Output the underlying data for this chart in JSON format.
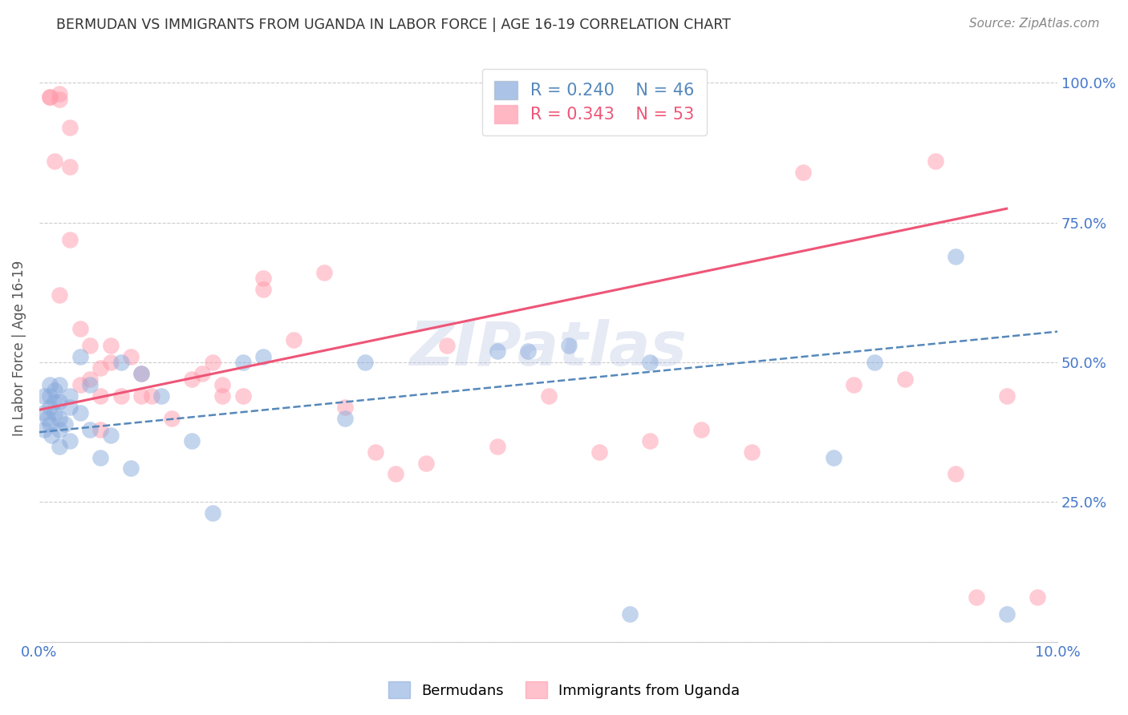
{
  "title": "BERMUDAN VS IMMIGRANTS FROM UGANDA IN LABOR FORCE | AGE 16-19 CORRELATION CHART",
  "source": "Source: ZipAtlas.com",
  "ylabel": "In Labor Force | Age 16-19",
  "xmin": 0.0,
  "xmax": 0.1,
  "ymin": 0.0,
  "ymax": 1.05,
  "yticks": [
    0.0,
    0.25,
    0.5,
    0.75,
    1.0
  ],
  "ytick_labels": [
    "",
    "25.0%",
    "50.0%",
    "75.0%",
    "100.0%"
  ],
  "xticks": [
    0.0,
    0.02,
    0.04,
    0.06,
    0.08,
    0.1
  ],
  "xtick_labels": [
    "0.0%",
    "",
    "",
    "",
    "",
    "10.0%"
  ],
  "legend_r1": "R = 0.240",
  "legend_n1": "N = 46",
  "legend_r2": "R = 0.343",
  "legend_n2": "N = 53",
  "color_blue": "#88AADD",
  "color_pink": "#FF99AA",
  "color_line_blue": "#5588BB",
  "color_line_pink": "#EE5577",
  "color_axis_labels": "#4477CC",
  "color_title": "#333333",
  "watermark": "ZIPatlas",
  "blue_scatter_x": [
    0.0005,
    0.0005,
    0.0005,
    0.0008,
    0.001,
    0.001,
    0.001,
    0.001,
    0.0012,
    0.0015,
    0.0015,
    0.0015,
    0.002,
    0.002,
    0.002,
    0.002,
    0.002,
    0.0025,
    0.003,
    0.003,
    0.003,
    0.004,
    0.004,
    0.005,
    0.005,
    0.006,
    0.007,
    0.008,
    0.009,
    0.01,
    0.012,
    0.015,
    0.017,
    0.02,
    0.022,
    0.03,
    0.032,
    0.045,
    0.048,
    0.052,
    0.058,
    0.06,
    0.078,
    0.082,
    0.09,
    0.095
  ],
  "blue_scatter_y": [
    0.44,
    0.41,
    0.38,
    0.4,
    0.42,
    0.44,
    0.46,
    0.39,
    0.37,
    0.43,
    0.45,
    0.41,
    0.38,
    0.4,
    0.43,
    0.46,
    0.35,
    0.39,
    0.36,
    0.42,
    0.44,
    0.41,
    0.51,
    0.38,
    0.46,
    0.33,
    0.37,
    0.5,
    0.31,
    0.48,
    0.44,
    0.36,
    0.23,
    0.5,
    0.51,
    0.4,
    0.5,
    0.52,
    0.52,
    0.53,
    0.05,
    0.5,
    0.33,
    0.5,
    0.69,
    0.05
  ],
  "pink_scatter_x": [
    0.001,
    0.001,
    0.0015,
    0.002,
    0.002,
    0.002,
    0.003,
    0.003,
    0.003,
    0.004,
    0.004,
    0.005,
    0.005,
    0.006,
    0.006,
    0.007,
    0.007,
    0.008,
    0.009,
    0.01,
    0.01,
    0.011,
    0.013,
    0.015,
    0.016,
    0.017,
    0.018,
    0.02,
    0.022,
    0.025,
    0.028,
    0.03,
    0.033,
    0.035,
    0.038,
    0.04,
    0.045,
    0.05,
    0.055,
    0.06,
    0.065,
    0.07,
    0.075,
    0.08,
    0.085,
    0.088,
    0.09,
    0.092,
    0.095,
    0.098,
    0.022,
    0.018,
    0.006
  ],
  "pink_scatter_y": [
    0.975,
    0.975,
    0.86,
    0.97,
    0.98,
    0.62,
    0.72,
    0.92,
    0.85,
    0.46,
    0.56,
    0.47,
    0.53,
    0.44,
    0.49,
    0.5,
    0.53,
    0.44,
    0.51,
    0.44,
    0.48,
    0.44,
    0.4,
    0.47,
    0.48,
    0.5,
    0.46,
    0.44,
    0.63,
    0.54,
    0.66,
    0.42,
    0.34,
    0.3,
    0.32,
    0.53,
    0.35,
    0.44,
    0.34,
    0.36,
    0.38,
    0.34,
    0.84,
    0.46,
    0.47,
    0.86,
    0.3,
    0.08,
    0.44,
    0.08,
    0.65,
    0.44,
    0.38
  ],
  "blue_line_x": [
    0.0,
    0.1
  ],
  "blue_line_y": [
    0.375,
    0.555
  ],
  "pink_line_x": [
    0.0,
    0.095
  ],
  "pink_line_y": [
    0.415,
    0.775
  ],
  "grid_color": "#CCCCCC",
  "background_color": "#FFFFFF"
}
